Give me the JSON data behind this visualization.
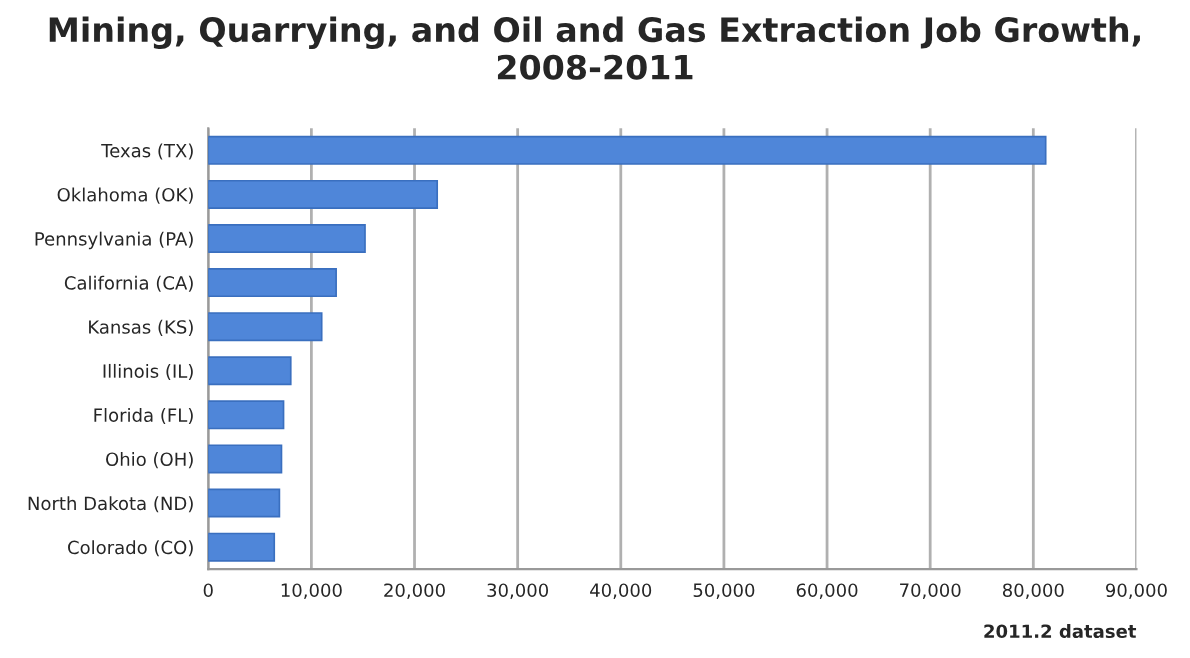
{
  "chart_data": {
    "type": "bar",
    "orientation": "horizontal",
    "title": "Mining, Quarrying, and Oil and Gas Extraction Job Growth,\n2008-2011",
    "categories": [
      "Texas (TX)",
      "Oklahoma (OK)",
      "Pennsylvania (PA)",
      "California (CA)",
      "Kansas (KS)",
      "Illinois (IL)",
      "Florida (FL)",
      "Ohio (OH)",
      "North Dakota (ND)",
      "Colorado (CO)"
    ],
    "values": [
      81200,
      22200,
      15200,
      12400,
      11000,
      8000,
      7300,
      7100,
      6900,
      6400
    ],
    "color": "#4f86d9",
    "xlim": [
      0,
      90000
    ],
    "xticks": [
      {
        "value": 0,
        "label": "0"
      },
      {
        "value": 10000,
        "label": "10,000"
      },
      {
        "value": 20000,
        "label": "20,000"
      },
      {
        "value": 30000,
        "label": "30,000"
      },
      {
        "value": 40000,
        "label": "40,000"
      },
      {
        "value": 50000,
        "label": "50,000"
      },
      {
        "value": 60000,
        "label": "60,000"
      },
      {
        "value": 70000,
        "label": "70,000"
      },
      {
        "value": 80000,
        "label": "80,000"
      },
      {
        "value": 90000,
        "label": "90,000"
      }
    ],
    "grid": "x",
    "annotations": [
      "2011.2 dataset"
    ]
  }
}
